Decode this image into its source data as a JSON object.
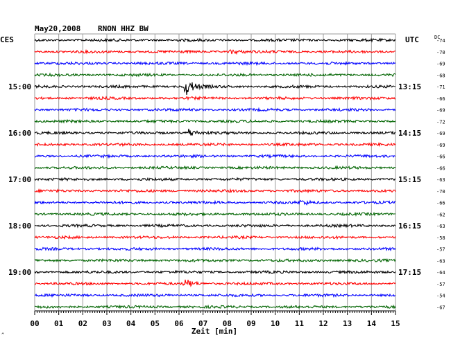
{
  "header": {
    "date": "May20,2008",
    "station": "RNON HHZ BW",
    "left_tz": "CES",
    "right_tz": "UTC",
    "dc_label": "DC"
  },
  "footer": {
    "xlabel": "Zeit [min]",
    "corner_mark": "^"
  },
  "chart_data": {
    "type": "line",
    "title": "May20,2008 RNON HHZ BW",
    "xlabel": "Zeit [min]",
    "xlim": [
      0,
      15
    ],
    "xticks": [
      "00",
      "01",
      "02",
      "03",
      "04",
      "05",
      "06",
      "07",
      "08",
      "09",
      "10",
      "11",
      "12",
      "13",
      "14",
      "15"
    ],
    "grid": true,
    "trace_colors": [
      "#000000",
      "#ff0000",
      "#0000ff",
      "#006400"
    ],
    "left_hour_labels": [
      {
        "trace": 4,
        "label": "15:00"
      },
      {
        "trace": 8,
        "label": "16:00"
      },
      {
        "trace": 12,
        "label": "17:00"
      },
      {
        "trace": 16,
        "label": "18:00"
      },
      {
        "trace": 20,
        "label": "19:00"
      }
    ],
    "right_time_labels": [
      {
        "trace": 4,
        "label": "13:15"
      },
      {
        "trace": 8,
        "label": "14:15"
      },
      {
        "trace": 12,
        "label": "15:15"
      },
      {
        "trace": 16,
        "label": "16:15"
      },
      {
        "trace": 20,
        "label": "17:15"
      }
    ],
    "dc_offsets": [
      "-74",
      "-70",
      "-69",
      "-68",
      "-71",
      "-66",
      "-69",
      "-72",
      "-69",
      "-69",
      "-66",
      "-66",
      "-63",
      "-70",
      "-66",
      "-62",
      "-63",
      "-58",
      "-57",
      "-63",
      "-64",
      "-57",
      "-54",
      "-67"
    ],
    "events": [
      {
        "trace": 4,
        "minute": 6.3,
        "amplitude": "large"
      },
      {
        "trace": 8,
        "minute": 6.4,
        "amplitude": "medium"
      },
      {
        "trace": 21,
        "minute": 6.3,
        "amplitude": "medium"
      },
      {
        "trace": 14,
        "minute": 11.1,
        "amplitude": "small"
      },
      {
        "trace": 1,
        "minute": 8.2,
        "amplitude": "small"
      }
    ]
  }
}
